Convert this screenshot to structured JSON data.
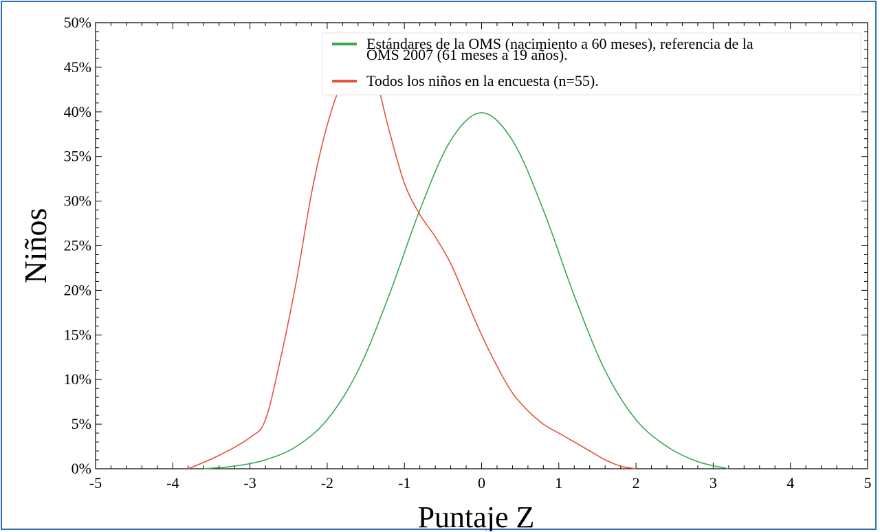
{
  "chart_data": {
    "type": "line",
    "xlabel": "Puntaje Z",
    "ylabel": "Niños",
    "xlim": [
      -5,
      5
    ],
    "ylim": [
      0,
      50
    ],
    "x_ticks": [
      "-5",
      "-4",
      "-3",
      "-2",
      "-1",
      "0",
      "1",
      "2",
      "3",
      "4",
      "5"
    ],
    "y_ticks": [
      "0%",
      "5%",
      "10%",
      "15%",
      "20%",
      "25%",
      "30%",
      "35%",
      "40%",
      "45%",
      "50%"
    ],
    "grid": false,
    "legend_position": "top-right",
    "series": [
      {
        "name": "Estándares de la OMS (nacimiento a 60 meses), referencia de la OMS 2007 (61 meses a 19 años).",
        "color": "#3aa655",
        "x": [
          -3.6,
          -3.2,
          -2.8,
          -2.4,
          -2.0,
          -1.6,
          -1.2,
          -0.8,
          -0.4,
          0.0,
          0.4,
          0.8,
          1.2,
          1.6,
          2.0,
          2.4,
          2.8,
          3.2
        ],
        "y": [
          0.0,
          0.3,
          1.0,
          2.5,
          5.5,
          11.0,
          19.4,
          29.0,
          36.8,
          39.9,
          36.8,
          29.0,
          19.4,
          11.0,
          5.5,
          2.5,
          0.8,
          0.0
        ]
      },
      {
        "name": "Todos los niños en la encuesta (n=55).",
        "color": "#e8503a",
        "x": [
          -3.8,
          -3.4,
          -3.0,
          -2.8,
          -2.6,
          -2.4,
          -2.2,
          -2.0,
          -1.8,
          -1.6,
          -1.4,
          -1.2,
          -1.0,
          -0.8,
          -0.6,
          -0.4,
          -0.2,
          0.0,
          0.2,
          0.4,
          0.6,
          0.8,
          1.0,
          1.2,
          1.4,
          1.6,
          1.8,
          2.0
        ],
        "y": [
          0.0,
          1.5,
          3.5,
          5.5,
          12.5,
          21.0,
          31.0,
          38.5,
          43.5,
          46.0,
          44.5,
          38.0,
          32.0,
          28.5,
          26.0,
          23.0,
          19.0,
          15.0,
          11.5,
          8.5,
          6.5,
          5.0,
          4.0,
          3.0,
          2.0,
          1.0,
          0.3,
          0.0
        ]
      }
    ]
  }
}
